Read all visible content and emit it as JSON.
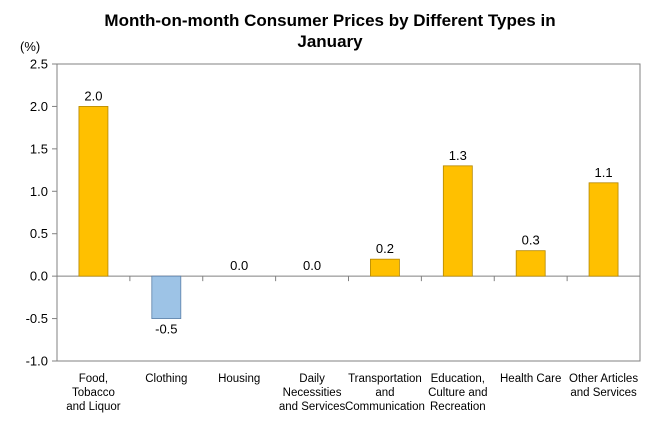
{
  "chart_data": {
    "type": "bar",
    "title_lines": [
      "Month-on-month Consumer Prices by Different Types in",
      "January"
    ],
    "unit": "(%)",
    "categories": [
      [
        "Food,",
        "Tobacco",
        "and Liquor"
      ],
      [
        "Clothing"
      ],
      [
        "Housing"
      ],
      [
        "Daily",
        "Necessities",
        "and Services"
      ],
      [
        "Transportation",
        "and",
        "Communication"
      ],
      [
        "Education,",
        "Culture and",
        "Recreation"
      ],
      [
        "Health Care"
      ],
      [
        "Other Articles",
        "and Services"
      ]
    ],
    "values": [
      2.0,
      -0.5,
      0.0,
      0.0,
      0.2,
      1.3,
      0.3,
      1.1
    ],
    "value_labels": [
      "2.0",
      "-0.5",
      "0.0",
      "0.0",
      "0.2",
      "1.3",
      "0.3",
      "1.1"
    ],
    "ylim": [
      -1.0,
      2.5
    ],
    "yticks": [
      2.5,
      2.0,
      1.5,
      1.0,
      0.5,
      0.0,
      -0.5,
      -1.0
    ],
    "ytick_labels": [
      "2.5",
      "2.0",
      "1.5",
      "1.0",
      "0.5",
      "0.0",
      "-0.5",
      "-1.0"
    ],
    "grid": false,
    "colors": {
      "positive": "#FFC000",
      "positive_stroke": "#B38600",
      "negative": "#9DC3E6",
      "negative_stroke": "#5B7FA8",
      "axis": "#808080"
    }
  }
}
